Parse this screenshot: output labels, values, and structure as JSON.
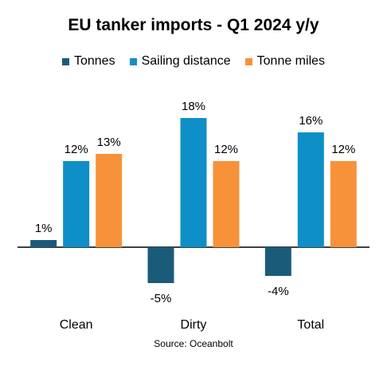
{
  "chart_data": {
    "type": "bar",
    "title": "EU tanker imports - Q1 2024 y/y",
    "categories": [
      "Clean",
      "Dirty",
      "Total"
    ],
    "series": [
      {
        "name": "Tonnes",
        "values": [
          1,
          -5,
          -4
        ],
        "color": "#1b5b7a"
      },
      {
        "name": "Sailing distance",
        "values": [
          12,
          18,
          16
        ],
        "color": "#0f8fc7"
      },
      {
        "name": "Tonne miles",
        "values": [
          13,
          12,
          12
        ],
        "color": "#f7923a"
      }
    ],
    "value_suffix": "%",
    "ylim": [
      -5,
      18
    ],
    "legend_position": "top",
    "grid": false,
    "source": "Source: Oceanbolt"
  }
}
